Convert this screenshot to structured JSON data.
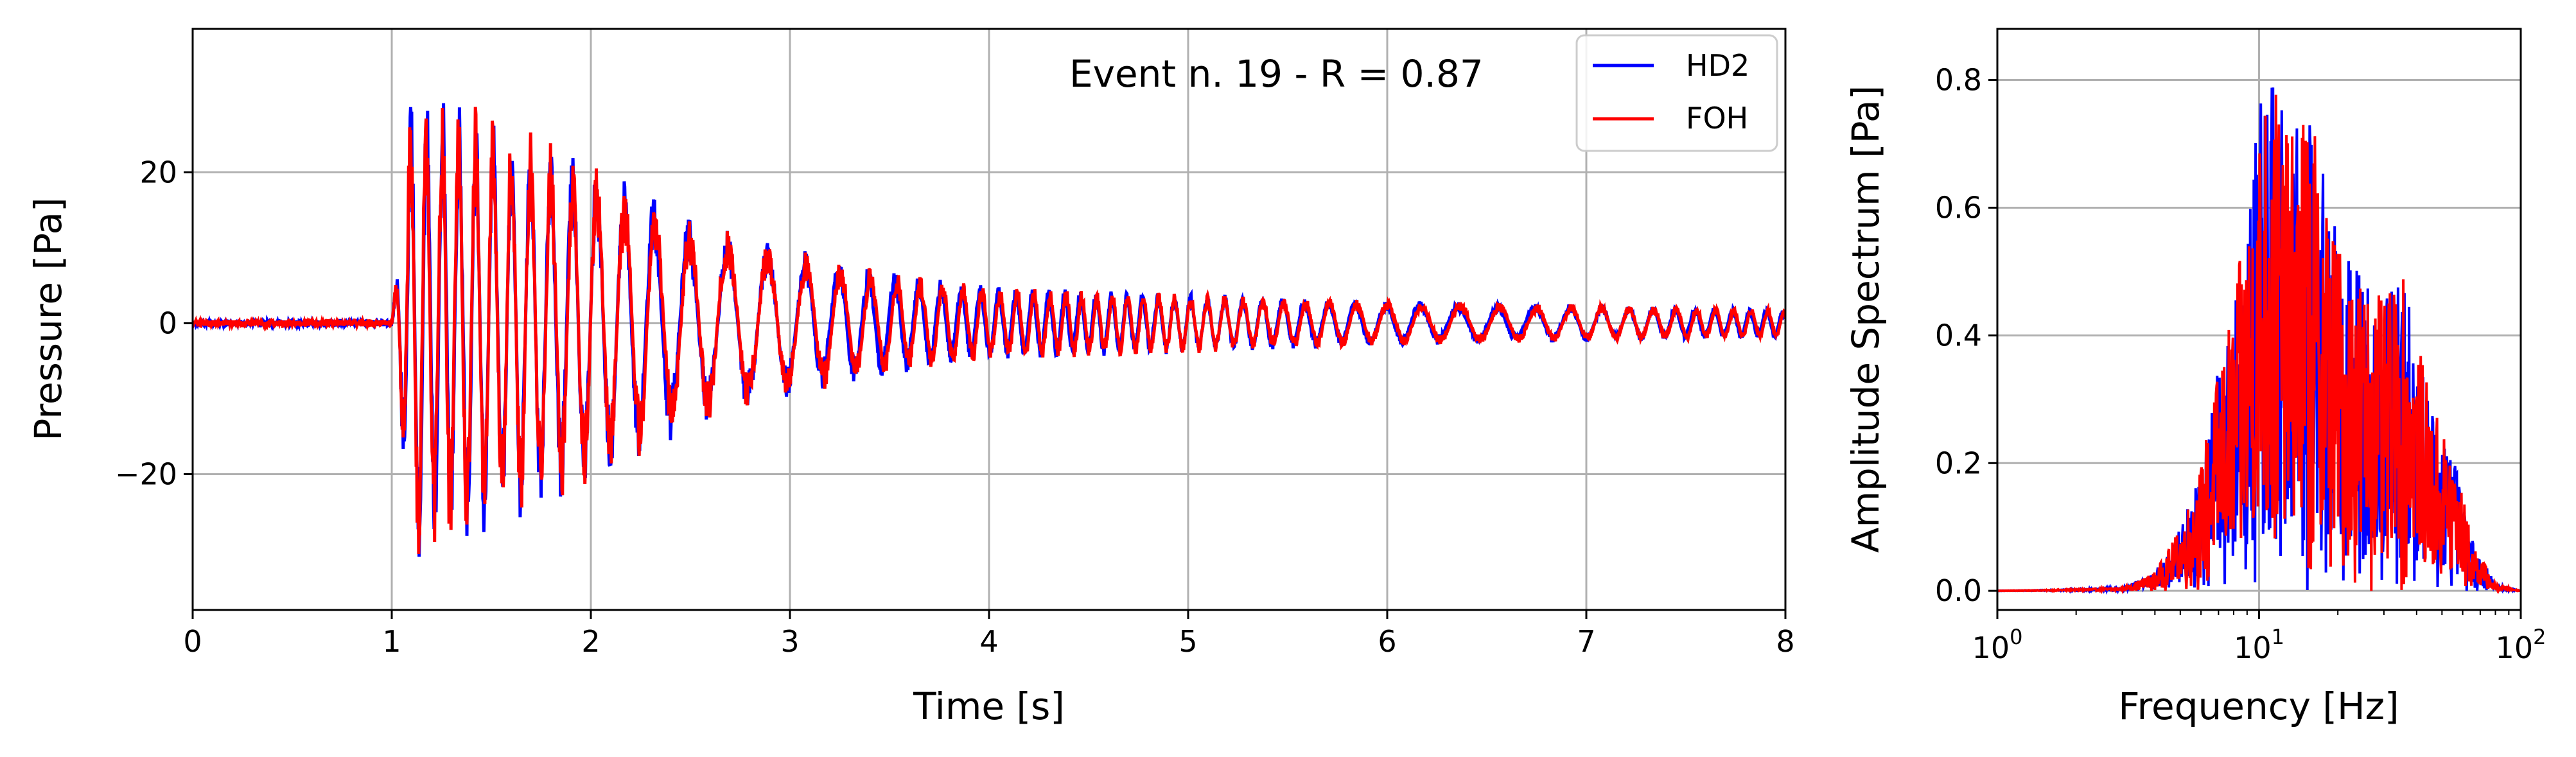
{
  "colors": {
    "hd2": "#0000ff",
    "foh": "#ff0000",
    "grid": "#b0b0b0"
  },
  "chart_data": [
    {
      "type": "line",
      "title": "",
      "annotation": "Event n. 19 - R = 0.87",
      "xlabel": "Time [s]",
      "ylabel": "Pressure [Pa]",
      "xlim": [
        0,
        8
      ],
      "ylim": [
        -38,
        39
      ],
      "xticks": [
        0,
        1,
        2,
        3,
        4,
        5,
        6,
        7,
        8
      ],
      "xtick_labels": [
        "0",
        "1",
        "2",
        "3",
        "4",
        "5",
        "6",
        "7",
        "8"
      ],
      "yticks": [
        -20,
        0,
        20
      ],
      "ytick_labels": [
        "−20",
        "0",
        "20"
      ],
      "grid": true,
      "legend_position": "top-right",
      "legend": [
        "HD2",
        "FOH"
      ],
      "series": [
        {
          "name": "HD2",
          "color": "#0000ff",
          "onset_s": 1.0,
          "peak_max": 35,
          "peak_min": -34,
          "noise_before_onset": 0.4
        },
        {
          "name": "FOH",
          "color": "#ff0000",
          "onset_s": 1.0,
          "peak_max": 33,
          "peak_min": -32,
          "noise_before_onset": 0.4
        }
      ],
      "envelope": [
        {
          "t": 1.0,
          "amp": 0
        },
        {
          "t": 1.1,
          "amp": 33
        },
        {
          "t": 1.5,
          "amp": 28
        },
        {
          "t": 2.0,
          "amp": 22
        },
        {
          "t": 2.5,
          "amp": 14
        },
        {
          "t": 3.0,
          "amp": 10
        },
        {
          "t": 3.5,
          "amp": 7
        },
        {
          "t": 4.0,
          "amp": 5
        },
        {
          "t": 5.0,
          "amp": 4
        },
        {
          "t": 6.0,
          "amp": 3
        },
        {
          "t": 7.0,
          "amp": 2.5
        },
        {
          "t": 8.0,
          "amp": 2
        }
      ]
    },
    {
      "type": "line",
      "title": "",
      "xlabel": "Frequency [Hz]",
      "ylabel": "Amplitude Spectrum [Pa]",
      "xscale": "log",
      "xlim": [
        1,
        100
      ],
      "ylim": [
        -0.03,
        0.88
      ],
      "xticks": [
        1,
        10,
        100
      ],
      "xtick_labels": [
        {
          "base": "10",
          "exp": "0"
        },
        {
          "base": "10",
          "exp": "1"
        },
        {
          "base": "10",
          "exp": "2"
        }
      ],
      "yticks": [
        0.0,
        0.2,
        0.4,
        0.6,
        0.8
      ],
      "ytick_labels": [
        "0.0",
        "0.2",
        "0.4",
        "0.6",
        "0.8"
      ],
      "grid": true,
      "series": [
        {
          "name": "HD2",
          "color": "#0000ff",
          "peak_freq_hz": 11,
          "peak_value": 0.82
        },
        {
          "name": "FOH",
          "color": "#ff0000",
          "peak_freq_hz": 11,
          "peak_value": 0.84
        }
      ],
      "envelope": [
        {
          "f": 1,
          "amp": 0.0
        },
        {
          "f": 3,
          "amp": 0.005
        },
        {
          "f": 4,
          "amp": 0.03
        },
        {
          "f": 5,
          "amp": 0.1
        },
        {
          "f": 6,
          "amp": 0.2
        },
        {
          "f": 7,
          "amp": 0.35
        },
        {
          "f": 8,
          "amp": 0.45
        },
        {
          "f": 9,
          "amp": 0.6
        },
        {
          "f": 10,
          "amp": 0.75
        },
        {
          "f": 11,
          "amp": 0.84
        },
        {
          "f": 13,
          "amp": 0.7
        },
        {
          "f": 15,
          "amp": 0.78
        },
        {
          "f": 20,
          "amp": 0.55
        },
        {
          "f": 30,
          "amp": 0.45
        },
        {
          "f": 35,
          "amp": 0.5
        },
        {
          "f": 45,
          "amp": 0.3
        },
        {
          "f": 55,
          "amp": 0.22
        },
        {
          "f": 65,
          "amp": 0.08
        },
        {
          "f": 80,
          "amp": 0.01
        },
        {
          "f": 100,
          "amp": 0.0
        }
      ]
    }
  ]
}
